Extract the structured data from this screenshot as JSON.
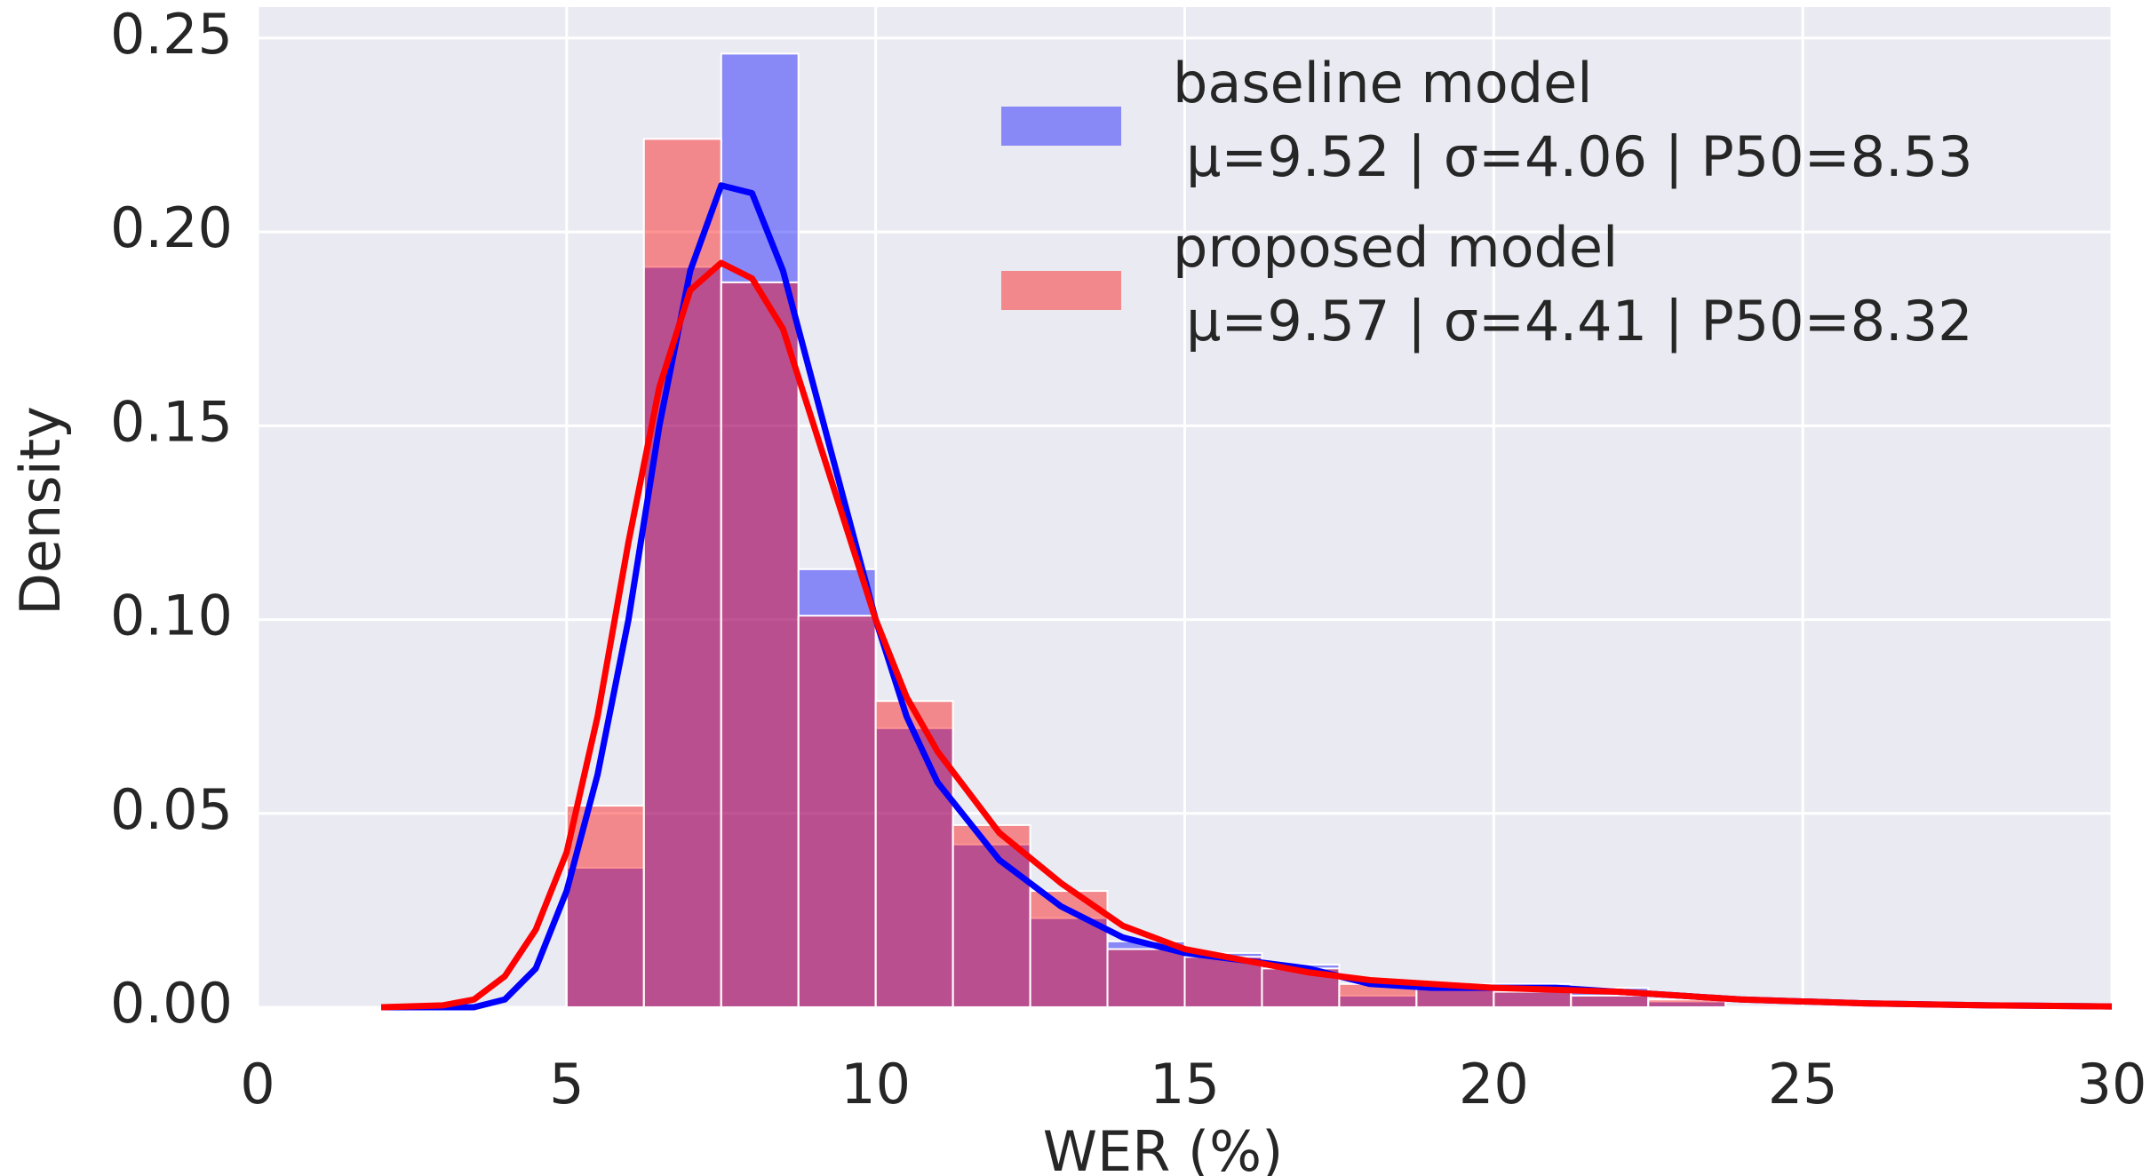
{
  "chart_data": {
    "type": "histogram",
    "xlabel": "WER (%)",
    "ylabel": "Density",
    "bins": [
      5,
      6.25,
      7.5,
      8.75,
      10,
      11.25,
      12.5,
      13.75,
      15,
      16.25,
      17.5,
      18.75,
      20,
      21.25,
      22.5,
      23.75
    ],
    "series": [
      {
        "name": "baseline model",
        "stats": "μ=9.52 | σ=4.06 | P50=8.53",
        "color": "#0000ff",
        "values": [
          0.036,
          0.191,
          0.246,
          0.113,
          0.072,
          0.042,
          0.023,
          0.017,
          0.014,
          0.011,
          0.003,
          0.006,
          0.006,
          0.005,
          0.0015
        ]
      },
      {
        "name": "proposed model",
        "stats": "μ=9.57 | σ=4.41 | P50=8.32",
        "color": "#ff0000",
        "values": [
          0.052,
          0.224,
          0.187,
          0.101,
          0.079,
          0.047,
          0.03,
          0.015,
          0.013,
          0.01,
          0.006,
          0.005,
          0.004,
          0.003,
          0.002
        ]
      }
    ],
    "curves": [
      {
        "color": "#0000ff",
        "x": [
          2,
          3,
          3.5,
          4,
          4.5,
          5,
          5.5,
          6,
          6.5,
          7,
          7.5,
          8,
          8.5,
          9,
          9.5,
          10,
          10.5,
          11,
          12,
          13,
          14,
          15,
          16,
          17,
          18,
          19,
          20,
          21,
          22,
          23,
          24,
          26,
          28,
          30
        ],
        "values": [
          0,
          0,
          0,
          0.002,
          0.01,
          0.03,
          0.06,
          0.1,
          0.15,
          0.19,
          0.212,
          0.21,
          0.19,
          0.16,
          0.13,
          0.1,
          0.075,
          0.058,
          0.038,
          0.026,
          0.018,
          0.014,
          0.012,
          0.01,
          0.006,
          0.005,
          0.005,
          0.005,
          0.004,
          0.003,
          0.002,
          0.001,
          0.0005,
          0.0002
        ]
      },
      {
        "color": "#ff0000",
        "x": [
          2,
          3,
          3.5,
          4,
          4.5,
          5,
          5.5,
          6,
          6.5,
          7,
          7.5,
          8,
          8.5,
          9,
          9.5,
          10,
          10.5,
          11,
          12,
          13,
          14,
          15,
          16,
          17,
          18,
          19,
          20,
          22,
          24,
          26,
          28,
          30
        ],
        "values": [
          0,
          0.0005,
          0.002,
          0.008,
          0.02,
          0.04,
          0.075,
          0.12,
          0.16,
          0.185,
          0.192,
          0.188,
          0.175,
          0.15,
          0.125,
          0.1,
          0.08,
          0.066,
          0.045,
          0.032,
          0.021,
          0.015,
          0.012,
          0.009,
          0.007,
          0.006,
          0.005,
          0.004,
          0.002,
          0.001,
          0.0005,
          0.0002
        ]
      }
    ],
    "xlim": [
      0,
      30
    ],
    "xticks": [
      0,
      5,
      10,
      15,
      20,
      25,
      30
    ],
    "ylim": [
      0,
      0.258
    ],
    "yticks": [
      {
        "value": 0,
        "label": "0.00"
      },
      {
        "value": 0.05,
        "label": "0.05"
      },
      {
        "value": 0.1,
        "label": "0.10"
      },
      {
        "value": 0.15,
        "label": "0.15"
      },
      {
        "value": 0.2,
        "label": "0.20"
      },
      {
        "value": 0.25,
        "label": "0.25"
      }
    ],
    "grid": true
  }
}
